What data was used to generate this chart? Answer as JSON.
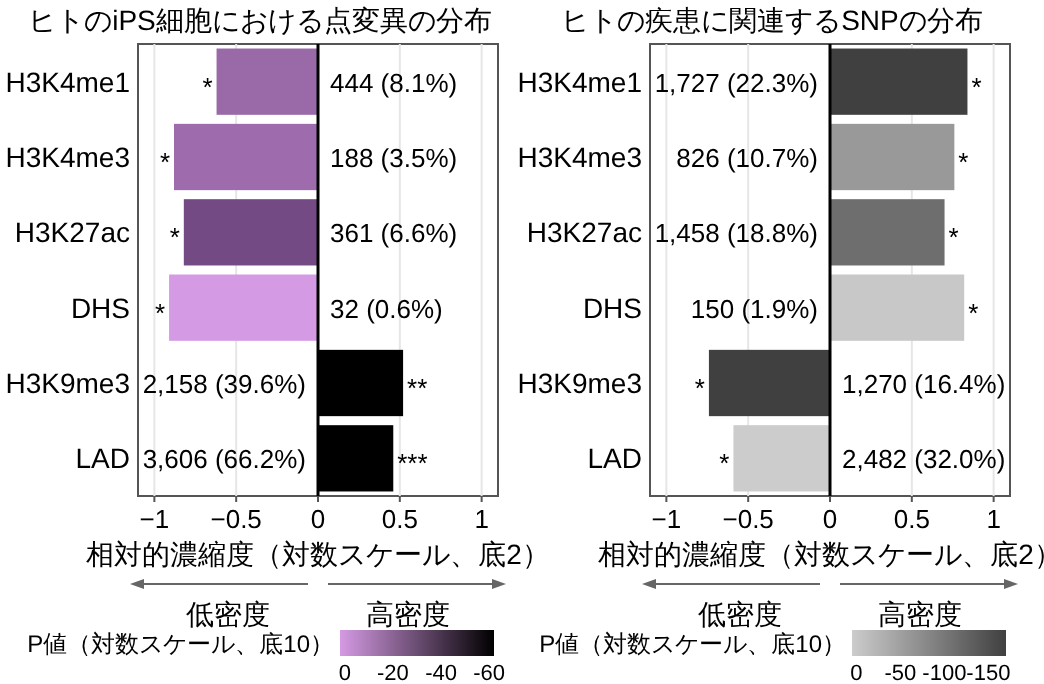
{
  "chart_data": [
    {
      "type": "bar",
      "orientation": "horizontal",
      "title": "ヒトのiPS細胞における点変異の分布",
      "xlabel": "相対的濃縮度（対数スケール、底2）",
      "clabel": "P値（対数スケール、底10）",
      "categories": [
        "H3K4me1",
        "H3K4me3",
        "H3K27ac",
        "DHS",
        "H3K9me3",
        "LAD"
      ],
      "values": [
        -0.62,
        -0.88,
        -0.82,
        -0.91,
        0.52,
        0.46
      ],
      "colors": [
        "#9a6aa8",
        "#9e6cad",
        "#744a85",
        "#d49ae3",
        "#000000",
        "#000000"
      ],
      "xlim": [
        -1.1,
        1.1
      ],
      "xticks": [
        -1,
        -0.5,
        0,
        0.5,
        1
      ],
      "clim": [
        2,
        -62
      ],
      "cticks": [
        0,
        -20,
        -40,
        -60
      ],
      "grid": "x",
      "annotations": [
        "低密度",
        "高密度",
        {
          "text": "444 (8.1%)",
          "x": 0,
          "y": "H3K4me1"
        },
        {
          "text": "188 (3.5%)",
          "x": 0,
          "y": "H3K4me3"
        },
        {
          "text": "361 (6.6%)",
          "x": 0,
          "y": "H3K27ac"
        },
        {
          "text": "32 (0.6%)",
          "x": 0,
          "y": "DHS"
        },
        {
          "text": "2,158 (39.6%)",
          "x": 0,
          "y": "H3K9me3"
        },
        {
          "text": "3,606 (66.2%)",
          "x": 0,
          "y": "LAD"
        },
        {
          "text": "*",
          "x": -0.62,
          "y": "H3K4me1"
        },
        {
          "text": "*",
          "x": -0.88,
          "y": "H3K4me3"
        },
        {
          "text": "*",
          "x": -0.82,
          "y": "H3K27ac"
        },
        {
          "text": "*",
          "x": -0.91,
          "y": "DHS"
        },
        {
          "text": "**",
          "x": 0.52,
          "y": "H3K9me3"
        },
        {
          "text": "***",
          "x": 0.46,
          "y": "LAD"
        }
      ]
    },
    {
      "type": "bar",
      "orientation": "horizontal",
      "title": "ヒトの疾患に関連するSNPの分布",
      "xlabel": "相対的濃縮度（対数スケール、底2）",
      "clabel": "P値（対数スケール、底10）",
      "categories": [
        "H3K4me1",
        "H3K4me3",
        "H3K27ac",
        "DHS",
        "H3K9me3",
        "LAD"
      ],
      "values": [
        0.84,
        0.76,
        0.7,
        0.82,
        -0.74,
        -0.59
      ],
      "colors": [
        "#404040",
        "#999999",
        "#6e6e6e",
        "#c8c8c8",
        "#404040",
        "#cccccc"
      ],
      "xlim": [
        -1.1,
        1.1
      ],
      "xticks": [
        -1,
        -0.5,
        0,
        0.5,
        1
      ],
      "clim": [
        5,
        -170
      ],
      "cticks": [
        0,
        -50,
        -100,
        -150
      ],
      "grid": "x",
      "annotations": [
        "低密度",
        "高密度",
        {
          "text": "1,727 (22.3%)",
          "x": 0,
          "y": "H3K4me1"
        },
        {
          "text": "826 (10.7%)",
          "x": 0,
          "y": "H3K4me3"
        },
        {
          "text": "1,458 (18.8%)",
          "x": 0,
          "y": "H3K27ac"
        },
        {
          "text": "150 (1.9%)",
          "x": 0,
          "y": "DHS"
        },
        {
          "text": "1,270 (16.4%)",
          "x": 0,
          "y": "H3K9me3"
        },
        {
          "text": "2,482 (32.0%)",
          "x": 0,
          "y": "LAD"
        },
        {
          "text": "*",
          "x": 0.84,
          "y": "H3K4me1"
        },
        {
          "text": "*",
          "x": 0.76,
          "y": "H3K4me3"
        },
        {
          "text": "*",
          "x": 0.7,
          "y": "H3K27ac"
        },
        {
          "text": "*",
          "x": 0.82,
          "y": "DHS"
        },
        {
          "text": "*",
          "x": -0.74,
          "y": "H3K9me3"
        },
        {
          "text": "*",
          "x": -0.59,
          "y": "LAD"
        }
      ]
    }
  ]
}
